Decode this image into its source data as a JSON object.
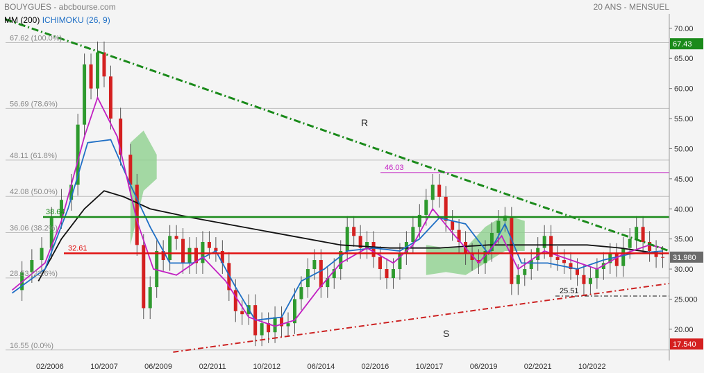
{
  "header": {
    "left": "BOUYGUES - abcbourse.com",
    "right": "20 ANS - MENSUEL"
  },
  "legend": [
    {
      "label": "MM (200)",
      "color": "#000000"
    },
    {
      "label": "ICHIMOKU (26, 9)",
      "color": "#1f6fc5"
    }
  ],
  "colors": {
    "price_up": "#2e9a2e",
    "price_down": "#d42020",
    "mm200": "#111111",
    "kijun": "#c21fc2",
    "tenkan": "#1f6fc5",
    "kumo": "#8fd18f",
    "trend_green": "#1a8a1a",
    "trend_red": "#cc2020"
  },
  "chart_data": {
    "type": "candlestick",
    "y_axis": {
      "ylim": [
        16.55,
        72
      ],
      "ticks": [
        20,
        25,
        30,
        35,
        40,
        45,
        50,
        55,
        60,
        65,
        70
      ],
      "tick_labels": [
        "20.00",
        "25.000",
        "30.00",
        "35.00",
        "40.00",
        "45.00",
        "50.00",
        "55.00",
        "60.00",
        "65.00",
        "70.00"
      ]
    },
    "x_axis": {
      "tick_labels": [
        "02/2006",
        "10/2007",
        "06/2009",
        "02/2011",
        "10/2012",
        "06/2014",
        "02/2016",
        "10/2017",
        "06/2019",
        "02/2021",
        "10/2022"
      ]
    },
    "fibonacci": [
      {
        "label": "67.62 (100.0%)",
        "value": 67.62
      },
      {
        "label": "56.69 (78.6%)",
        "value": 56.69
      },
      {
        "label": "48.11 (61.8%)",
        "value": 48.11
      },
      {
        "label": "42.08 (50.0%)",
        "value": 42.08
      },
      {
        "label": "36.06 (38.2%)",
        "value": 36.06
      },
      {
        "label": "28.53 (23.6%)",
        "value": 28.53
      },
      {
        "label": "16.55 (0.0%)",
        "value": 16.55
      }
    ],
    "price_tags": [
      {
        "label": "67.43",
        "value": 67.43,
        "color": "#1a8a1a"
      },
      {
        "label": "31.980",
        "value": 31.98,
        "color": "#6b6b6b"
      },
      {
        "label": "17.540",
        "value": 17.54,
        "color": "#d42020"
      }
    ],
    "horizontal_levels": [
      {
        "label": "38.64",
        "value": 38.64,
        "color": "#1a8a1a"
      },
      {
        "label": "32.61",
        "value": 32.61,
        "color": "#e01010"
      },
      {
        "label": "46.03",
        "value": 46.03,
        "color": "#c21fc2"
      },
      {
        "label": "25.51",
        "value": 25.51,
        "color": "#111111"
      }
    ],
    "annotations": [
      {
        "text": "R"
      },
      {
        "text": "S"
      }
    ],
    "trendlines": [
      {
        "name": "R",
        "from": [
          2004.8,
          71.5
        ],
        "to": [
          2025.0,
          33.0
        ]
      },
      {
        "name": "S",
        "from": [
          2009.9,
          16.2
        ],
        "to": [
          2025.0,
          27.6
        ]
      }
    ],
    "close_series": [
      [
        2005.0,
        26.5
      ],
      [
        2005.3,
        29.5
      ],
      [
        2005.6,
        31.5
      ],
      [
        2005.9,
        33.5
      ],
      [
        2006.2,
        38.5
      ],
      [
        2006.5,
        41.5
      ],
      [
        2006.8,
        44.0
      ],
      [
        2007.0,
        54.0
      ],
      [
        2007.2,
        64.0
      ],
      [
        2007.4,
        60.0
      ],
      [
        2007.6,
        66.0
      ],
      [
        2007.8,
        62.0
      ],
      [
        2008.0,
        55.0
      ],
      [
        2008.3,
        49.0
      ],
      [
        2008.6,
        44.0
      ],
      [
        2008.8,
        34.0
      ],
      [
        2009.0,
        23.5
      ],
      [
        2009.2,
        27.0
      ],
      [
        2009.4,
        33.0
      ],
      [
        2009.6,
        31.5
      ],
      [
        2009.8,
        35.5
      ],
      [
        2010.0,
        35.0
      ],
      [
        2010.2,
        31.0
      ],
      [
        2010.4,
        33.5
      ],
      [
        2010.6,
        31.0
      ],
      [
        2010.8,
        34.5
      ],
      [
        2011.0,
        33.5
      ],
      [
        2011.2,
        33.0
      ],
      [
        2011.4,
        31.0
      ],
      [
        2011.6,
        26.5
      ],
      [
        2011.8,
        23.0
      ],
      [
        2012.0,
        22.5
      ],
      [
        2012.2,
        24.0
      ],
      [
        2012.4,
        19.0
      ],
      [
        2012.6,
        21.0
      ],
      [
        2012.8,
        19.5
      ],
      [
        2013.0,
        22.0
      ],
      [
        2013.2,
        20.5
      ],
      [
        2013.4,
        21.0
      ],
      [
        2013.6,
        25.0
      ],
      [
        2013.8,
        27.0
      ],
      [
        2014.0,
        30.0
      ],
      [
        2014.2,
        31.5
      ],
      [
        2014.4,
        27.0
      ],
      [
        2014.6,
        28.5
      ],
      [
        2014.8,
        30.0
      ],
      [
        2015.0,
        33.0
      ],
      [
        2015.2,
        37.0
      ],
      [
        2015.4,
        35.5
      ],
      [
        2015.6,
        33.5
      ],
      [
        2015.8,
        34.5
      ],
      [
        2016.0,
        32.0
      ],
      [
        2016.2,
        30.0
      ],
      [
        2016.4,
        28.5
      ],
      [
        2016.6,
        30.0
      ],
      [
        2016.8,
        32.5
      ],
      [
        2017.0,
        34.5
      ],
      [
        2017.2,
        37.0
      ],
      [
        2017.4,
        39.0
      ],
      [
        2017.6,
        41.5
      ],
      [
        2017.8,
        44.0
      ],
      [
        2018.0,
        42.0
      ],
      [
        2018.2,
        38.0
      ],
      [
        2018.4,
        36.5
      ],
      [
        2018.6,
        34.5
      ],
      [
        2018.8,
        32.5
      ],
      [
        2019.0,
        31.5
      ],
      [
        2019.2,
        31.0
      ],
      [
        2019.4,
        33.0
      ],
      [
        2019.6,
        36.0
      ],
      [
        2019.8,
        38.0
      ],
      [
        2020.0,
        38.5
      ],
      [
        2020.2,
        27.5
      ],
      [
        2020.4,
        29.0
      ],
      [
        2020.6,
        30.0
      ],
      [
        2020.8,
        31.5
      ],
      [
        2021.0,
        33.5
      ],
      [
        2021.2,
        35.5
      ],
      [
        2021.4,
        32.0
      ],
      [
        2021.6,
        31.5
      ],
      [
        2021.8,
        31.0
      ],
      [
        2022.0,
        30.0
      ],
      [
        2022.2,
        29.0
      ],
      [
        2022.4,
        27.5
      ],
      [
        2022.6,
        28.5
      ],
      [
        2022.8,
        30.0
      ],
      [
        2023.0,
        31.0
      ],
      [
        2023.2,
        32.5
      ],
      [
        2023.4,
        30.5
      ],
      [
        2023.6,
        33.5
      ],
      [
        2023.8,
        35.0
      ],
      [
        2024.0,
        37.0
      ],
      [
        2024.2,
        34.5
      ],
      [
        2024.4,
        33.0
      ],
      [
        2024.6,
        32.0
      ],
      [
        2024.8,
        31.98
      ]
    ],
    "kijun_series": [
      [
        2005.0,
        26.5
      ],
      [
        2006.0,
        31.0
      ],
      [
        2006.5,
        38.0
      ],
      [
        2007.2,
        52.0
      ],
      [
        2007.6,
        58.5
      ],
      [
        2008.2,
        52.0
      ],
      [
        2008.8,
        38.0
      ],
      [
        2009.3,
        30.0
      ],
      [
        2010.0,
        29.0
      ],
      [
        2010.8,
        32.0
      ],
      [
        2011.5,
        28.0
      ],
      [
        2012.2,
        22.0
      ],
      [
        2013.0,
        20.5
      ],
      [
        2013.6,
        21.5
      ],
      [
        2014.3,
        26.5
      ],
      [
        2015.0,
        31.0
      ],
      [
        2015.8,
        33.5
      ],
      [
        2016.6,
        31.0
      ],
      [
        2017.2,
        34.0
      ],
      [
        2017.8,
        40.0
      ],
      [
        2018.4,
        36.0
      ],
      [
        2019.2,
        31.0
      ],
      [
        2019.9,
        35.5
      ],
      [
        2020.4,
        30.0
      ],
      [
        2021.2,
        33.0
      ],
      [
        2022.0,
        31.5
      ],
      [
        2022.8,
        30.0
      ],
      [
        2023.6,
        32.5
      ],
      [
        2024.4,
        34.0
      ],
      [
        2024.8,
        33.5
      ]
    ],
    "tenkan_series": [
      [
        2005.0,
        26.0
      ],
      [
        2006.0,
        30.0
      ],
      [
        2006.7,
        40.0
      ],
      [
        2007.3,
        51.0
      ],
      [
        2008.0,
        51.5
      ],
      [
        2008.6,
        44.0
      ],
      [
        2009.2,
        37.0
      ],
      [
        2009.8,
        31.0
      ],
      [
        2010.5,
        31.0
      ],
      [
        2011.2,
        33.0
      ],
      [
        2011.8,
        27.0
      ],
      [
        2012.4,
        21.5
      ],
      [
        2013.2,
        22.0
      ],
      [
        2013.8,
        28.0
      ],
      [
        2014.5,
        30.0
      ],
      [
        2015.2,
        33.0
      ],
      [
        2016.0,
        33.5
      ],
      [
        2016.8,
        33.0
      ],
      [
        2017.4,
        35.0
      ],
      [
        2018.0,
        38.5
      ],
      [
        2018.8,
        37.5
      ],
      [
        2019.5,
        32.5
      ],
      [
        2020.0,
        37.5
      ],
      [
        2020.5,
        31.0
      ],
      [
        2021.3,
        31.0
      ],
      [
        2022.2,
        30.0
      ],
      [
        2023.0,
        31.5
      ],
      [
        2023.8,
        32.5
      ],
      [
        2024.8,
        33.0
      ]
    ],
    "mm200_series": [
      [
        2005.8,
        28.0
      ],
      [
        2006.5,
        35.0
      ],
      [
        2007.2,
        40.0
      ],
      [
        2007.8,
        43.0
      ],
      [
        2008.4,
        42.0
      ],
      [
        2009.2,
        40.0
      ],
      [
        2010.5,
        38.5
      ],
      [
        2012.0,
        37.0
      ],
      [
        2013.5,
        35.5
      ],
      [
        2015.0,
        34.0
      ],
      [
        2016.5,
        33.5
      ],
      [
        2018.0,
        33.5
      ],
      [
        2019.5,
        34.0
      ],
      [
        2021.0,
        34.0
      ],
      [
        2022.5,
        34.0
      ],
      [
        2023.5,
        33.5
      ],
      [
        2024.8,
        32.5
      ]
    ],
    "kumo_regions": [
      {
        "x": [
          2008.6,
          2009.0,
          2009.4
        ],
        "top": [
          51.0,
          53.0,
          49.0
        ],
        "bottom": [
          34.0,
          43.0,
          45.0
        ]
      },
      {
        "x": [
          2017.6,
          2018.2,
          2018.8,
          2019.4,
          2020.0,
          2020.6
        ],
        "top": [
          34.0,
          33.5,
          33.5,
          37.0,
          39.0,
          38.0
        ],
        "bottom": [
          29.0,
          29.5,
          29.0,
          31.0,
          33.0,
          33.0
        ]
      }
    ]
  }
}
